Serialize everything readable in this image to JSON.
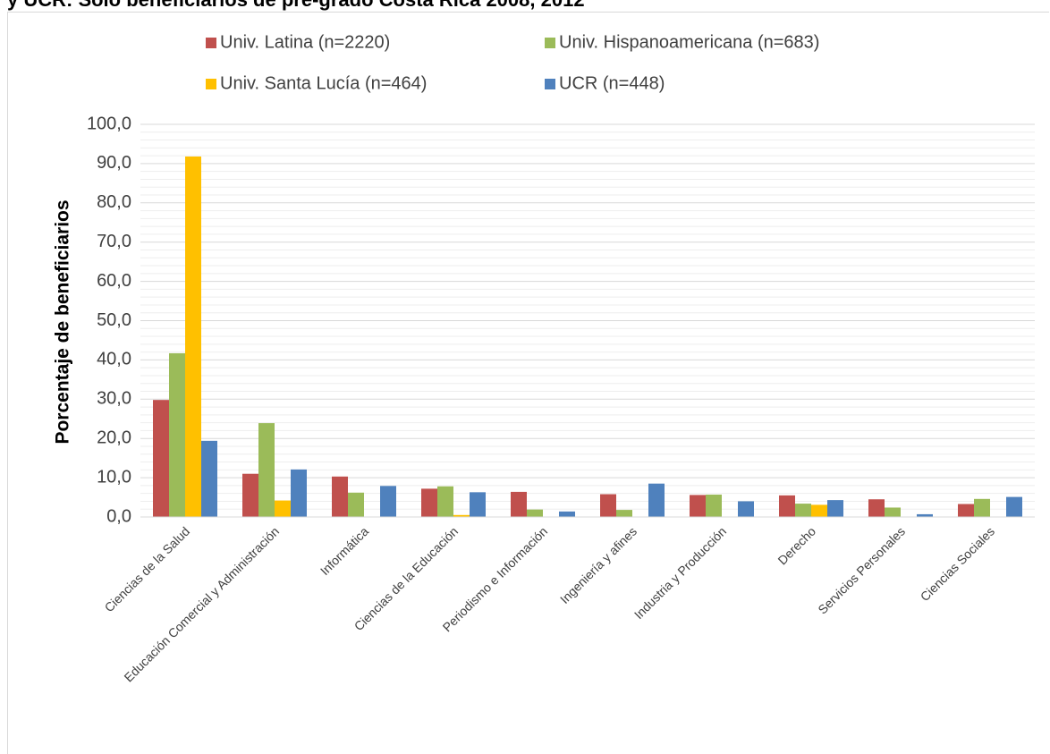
{
  "chart_title": "y UCR:  Solo beneficiarios de pre-grado Costa Rica 2008, 2012",
  "chart_data": {
    "type": "bar",
    "title": "y UCR:  Solo beneficiarios de pre-grado Costa Rica 2008, 2012",
    "ylabel": "Porcentaje de beneficiarios",
    "xlabel": "",
    "ylim": [
      0,
      100
    ],
    "yticks": [
      "0,0",
      "10,0",
      "20,0",
      "30,0",
      "40,0",
      "50,0",
      "60,0",
      "70,0",
      "80,0",
      "90,0",
      "100,0"
    ],
    "legend_position": "top",
    "grid": true,
    "categories": [
      "Ciencias de la Salud",
      "Educación Comercial y Administración",
      "Informática",
      "Ciencias de la Educación",
      "Periodismo e Información",
      "Ingeniería y afines",
      "Industria y Producción",
      "Derecho",
      "Servicios Personales",
      "Ciencias Sociales"
    ],
    "series": [
      {
        "name": "Univ. Latina (n=2220)",
        "color": "#c0504d",
        "values": [
          29.8,
          11.0,
          10.3,
          7.2,
          6.4,
          5.8,
          5.6,
          5.5,
          4.5,
          3.3
        ]
      },
      {
        "name": "Univ. Hispanoamericana (n=683)",
        "color": "#9bbb59",
        "values": [
          41.7,
          23.9,
          6.2,
          7.8,
          1.9,
          1.8,
          5.7,
          3.4,
          2.4,
          4.6
        ]
      },
      {
        "name": "Univ. Santa Lucía (n=464)",
        "color": "#ffc000",
        "values": [
          91.8,
          4.2,
          0,
          0.5,
          0,
          0,
          0,
          3.1,
          0,
          0
        ]
      },
      {
        "name": "UCR (n=448)",
        "color": "#4f81bd",
        "values": [
          19.4,
          12.1,
          7.9,
          6.3,
          1.4,
          8.5,
          4.0,
          4.3,
          0.7,
          5.1
        ]
      }
    ]
  }
}
